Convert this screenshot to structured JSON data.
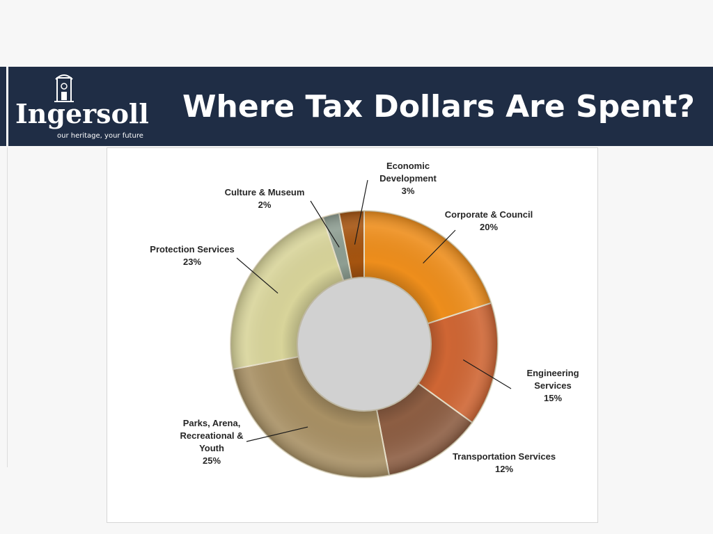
{
  "header": {
    "title": "Where Tax Dollars Are Spent?",
    "logo_word": "Ingersoll",
    "logo_tagline": "our heritage, your future"
  },
  "colors": {
    "banner": "#1f2d45",
    "background": "#f7f7f7"
  },
  "chart_data": {
    "type": "pie",
    "donut": true,
    "categories": [
      "Corporate & Council",
      "Engineering Services",
      "Transportation Services",
      "Parks, Arena, Recreational & Youth",
      "Protection Services",
      "Culture & Museum",
      "Economic Development"
    ],
    "values": [
      20,
      15,
      12,
      25,
      23,
      2,
      3
    ],
    "value_labels": [
      "20%",
      "15%",
      "12%",
      "25%",
      "23%",
      "2%",
      "3%"
    ],
    "colors": [
      "#ee8e1c",
      "#cf6634",
      "#8d5e43",
      "#a89064",
      "#d8d49a",
      "#8e9e92",
      "#a55410"
    ],
    "legend": "none"
  }
}
